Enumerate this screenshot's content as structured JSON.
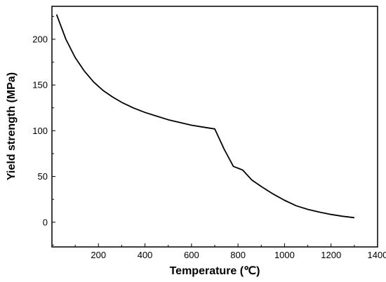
{
  "chart_data": {
    "type": "line",
    "xlabel": "Temperature (℃)",
    "ylabel": "Yield strength (MPa)",
    "xlim": [
      0,
      1400
    ],
    "ylim": [
      -27,
      236
    ],
    "xticks": [
      200,
      400,
      600,
      800,
      1000,
      1200,
      1400
    ],
    "yticks": [
      0,
      50,
      100,
      150,
      200
    ],
    "grid": false,
    "legend": "none",
    "series": [
      {
        "x": [
          20,
          60,
          100,
          140,
          180,
          220,
          260,
          300,
          350,
          400,
          450,
          500,
          550,
          600,
          650,
          700,
          740,
          780,
          820,
          860,
          900,
          950,
          1000,
          1050,
          1100,
          1150,
          1200,
          1250,
          1300
        ],
        "y": [
          227,
          200,
          180,
          165,
          153,
          144,
          137,
          131,
          125,
          120,
          116,
          112,
          109,
          106,
          104,
          102,
          80,
          61,
          57,
          46,
          39,
          31,
          24,
          18,
          14,
          11,
          8.5,
          6.5,
          5
        ],
        "color": "#000000"
      }
    ]
  }
}
